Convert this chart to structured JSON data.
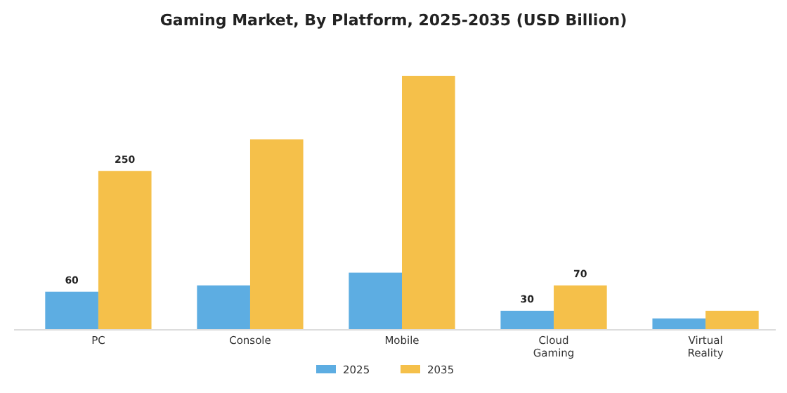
{
  "chart_data": {
    "type": "bar",
    "title": "Gaming Market, By Platform, 2025-2035 (USD Billion)",
    "categories": [
      "PC",
      "Console",
      "Mobile",
      "Cloud\nGaming",
      "Virtual\nReality"
    ],
    "series": [
      {
        "name": "2025",
        "color": "#5dade2",
        "values": [
          60,
          70,
          90,
          30,
          18
        ],
        "value_labels": [
          "60",
          null,
          null,
          "30",
          null
        ]
      },
      {
        "name": "2035",
        "color": "#f5c04a",
        "values": [
          250,
          300,
          400,
          70,
          30
        ],
        "value_labels": [
          "250",
          null,
          null,
          "70",
          null
        ]
      }
    ],
    "legend": "bottom",
    "grid": false
  }
}
